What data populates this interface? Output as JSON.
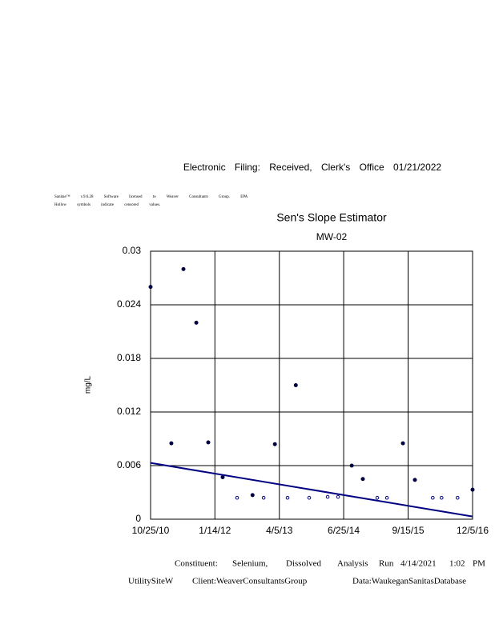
{
  "header": "Electronic Filing: Received, Clerk's Office 01/21/2022",
  "notes": [
    "Sanitas™ v.9.6.28 Software licensed to Weaver Consultants Group. EPA",
    "Hollow symbols indicate censored values."
  ],
  "chart_data": {
    "type": "scatter",
    "title": "Sen's Slope Estimator",
    "subtitle": "MW-02",
    "y_label": "mg/L",
    "xlim": [
      "2010-10-25",
      "2016-12-05"
    ],
    "xticks": [
      {
        "value": "2010-10-25",
        "label": "10/25/10"
      },
      {
        "value": "2012-01-14",
        "label": "1/14/12"
      },
      {
        "value": "2013-04-05",
        "label": "4/5/13"
      },
      {
        "value": "2014-06-25",
        "label": "6/25/14"
      },
      {
        "value": "2015-09-15",
        "label": "9/15/15"
      },
      {
        "value": "2016-12-05",
        "label": "12/5/16"
      }
    ],
    "ylim": [
      0,
      0.03
    ],
    "yticks": [
      0,
      0.006,
      0.012,
      0.018,
      0.024,
      0.03
    ],
    "grid": true,
    "series": [
      {
        "color": "#000040",
        "filled": true,
        "x": [
          "2010-10-25",
          "2011-03-18",
          "2011-06-10",
          "2011-09-07",
          "2011-11-29",
          "2012-03-08",
          "2012-10-01",
          "2013-03-05",
          "2013-07-28",
          "2014-08-20",
          "2014-11-05",
          "2015-08-10",
          "2015-11-01",
          "2016-12-05"
        ],
        "values": [
          0.026,
          0.0085,
          0.028,
          0.022,
          0.0086,
          0.0047,
          0.0027,
          0.0084,
          0.015,
          0.006,
          0.0045,
          0.0085,
          0.0044,
          0.0033
        ]
      },
      {
        "color": "#000080",
        "filled": false,
        "x": [
          "2012-06-16",
          "2012-12-17",
          "2013-06-01",
          "2013-10-29",
          "2014-03-06",
          "2014-05-17",
          "2015-02-13",
          "2015-04-21",
          "2016-03-04",
          "2016-05-04",
          "2016-08-23"
        ],
        "values": [
          0.0024,
          0.0024,
          0.0024,
          0.0024,
          0.0025,
          0.0025,
          0.0024,
          0.0024,
          0.0024,
          0.0024,
          0.0024
        ]
      }
    ],
    "trend": {
      "color": "#000080",
      "x": [
        "2010-10-25",
        "2016-12-05"
      ],
      "values": [
        0.0063,
        0.0003
      ]
    }
  },
  "footer": [
    [
      "Constituent:",
      "Selenium,",
      "Dissolved",
      "Analysis",
      "Run",
      "4/14/2021",
      "1:02",
      "PM"
    ],
    [
      "UtilitySiteW",
      "Client:WeaverConsultantsGroup",
      "Data:WaukeganSanitasDatabase"
    ]
  ]
}
